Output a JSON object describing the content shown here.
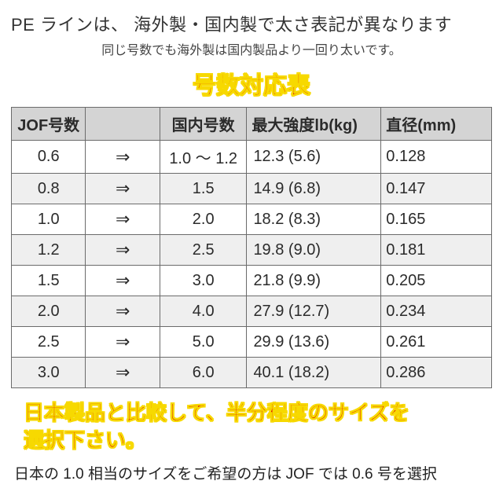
{
  "headline": "PE ラインは、 海外製・国内製で太さ表記が異なります",
  "subhead": "同じ号数でも海外製は国内製品より一回り太いです。",
  "big_title": "号数対応表",
  "table": {
    "columns": [
      "JOF号数",
      "",
      "国内号数",
      "最大強度lb(kg)",
      "直径(mm)"
    ],
    "arrow": "⇒",
    "rows": [
      {
        "jof": "0.6",
        "dom": "1.0 ～ 1.2",
        "lb": "12.3 (5.6)",
        "dia": "0.128"
      },
      {
        "jof": "0.8",
        "dom": "1.5",
        "lb": "14.9 (6.8)",
        "dia": "0.147"
      },
      {
        "jof": "1.0",
        "dom": "2.0",
        "lb": "18.2 (8.3)",
        "dia": "0.165"
      },
      {
        "jof": "1.2",
        "dom": "2.5",
        "lb": "19.8 (9.0)",
        "dia": "0.181"
      },
      {
        "jof": "1.5",
        "dom": "3.0",
        "lb": "21.8 (9.9)",
        "dia": "0.205"
      },
      {
        "jof": "2.0",
        "dom": "4.0",
        "lb": "27.9 (12.7)",
        "dia": "0.234"
      },
      {
        "jof": "2.5",
        "dom": "5.0",
        "lb": "29.9 (13.6)",
        "dia": "0.261"
      },
      {
        "jof": "3.0",
        "dom": "6.0",
        "lb": "40.1 (18.2)",
        "dia": "0.286"
      }
    ]
  },
  "foot_red_l1": "日本製品と比較して、半分程度のサイズを",
  "foot_red_l2": "選択下さい。",
  "foot_note": "日本の 1.0 相当のサイズをご希望の方は JOF では 0.6 号を選択"
}
